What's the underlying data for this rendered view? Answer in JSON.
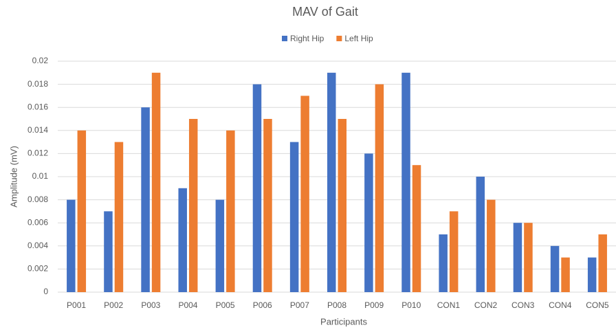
{
  "chart_data": {
    "type": "bar",
    "title": "MAV of Gait",
    "x_label": "Participants",
    "y_label": "Amplitude (mV)",
    "categories": [
      "P001",
      "P002",
      "P003",
      "P004",
      "P005",
      "P006",
      "P007",
      "P008",
      "P009",
      "P010",
      "CON1",
      "CON2",
      "CON3",
      "CON4",
      "CON5"
    ],
    "series": [
      {
        "name": "Right Hip",
        "color": "#4472c4",
        "values": [
          0.008,
          0.007,
          0.016,
          0.009,
          0.008,
          0.018,
          0.013,
          0.019,
          0.012,
          0.019,
          0.005,
          0.01,
          0.006,
          0.004,
          0.003
        ]
      },
      {
        "name": "Left Hip",
        "color": "#ed7d31",
        "values": [
          0.014,
          0.013,
          0.019,
          0.015,
          0.014,
          0.015,
          0.017,
          0.015,
          0.018,
          0.011,
          0.007,
          0.008,
          0.006,
          0.003,
          0.005
        ]
      }
    ],
    "ylim": [
      0,
      0.02
    ],
    "yticks": [
      0,
      0.002,
      0.004,
      0.006,
      0.008,
      0.01,
      0.012,
      0.014,
      0.016,
      0.018,
      0.02
    ],
    "grid": true,
    "legend": "top"
  }
}
